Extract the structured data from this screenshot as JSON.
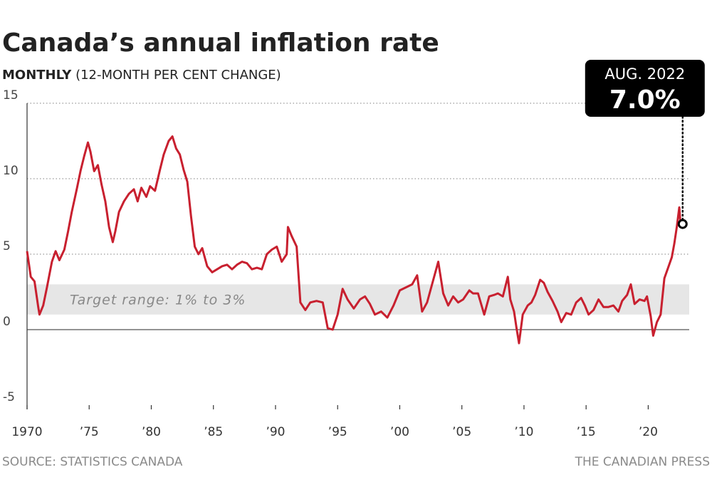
{
  "chart_data": {
    "type": "line",
    "title": "Canada’s annual inflation rate",
    "subtitle_bold": "MONTHLY",
    "subtitle": "(12-MONTH PER CENT CHANGE)",
    "source": "SOURCE: STATISTICS CANADA",
    "credit": "THE CANADIAN PRESS",
    "color": "#c8202f",
    "xlim": [
      1970,
      2023.3
    ],
    "ylim": [
      -5,
      15
    ],
    "xticks": [
      1970,
      {
        "value": 1975,
        "label": "’75"
      },
      {
        "value": 1980,
        "label": "’80"
      },
      {
        "value": 1985,
        "label": "’85"
      },
      {
        "value": 1990,
        "label": "’90"
      },
      {
        "value": 1995,
        "label": "’95"
      },
      {
        "value": 2000,
        "label": "’00"
      },
      {
        "value": 2005,
        "label": "’05"
      },
      {
        "value": 2010,
        "label": "’10"
      },
      {
        "value": 2015,
        "label": "’15"
      },
      {
        "value": 2020,
        "label": "’20"
      }
    ],
    "yticks": [
      15,
      10,
      5,
      0,
      -5
    ],
    "grid": true,
    "target_range": {
      "label": "Target range: 1% to 3%",
      "range": [
        1,
        3
      ]
    },
    "annotation": {
      "date_label": "AUG. 2022",
      "x": 2022.6,
      "value": 7.0,
      "value_label": "7.0%"
    },
    "x": [
      1970.0,
      1970.3,
      1970.6,
      1970.9,
      1971.0,
      1971.3,
      1971.6,
      1972.0,
      1972.3,
      1972.6,
      1973.0,
      1973.3,
      1973.6,
      1974.0,
      1974.3,
      1974.6,
      1974.9,
      1975.1,
      1975.4,
      1975.7,
      1976.0,
      1976.3,
      1976.6,
      1976.9,
      1977.1,
      1977.4,
      1977.8,
      1978.2,
      1978.6,
      1978.9,
      1979.2,
      1979.6,
      1979.9,
      1980.3,
      1980.7,
      1981.0,
      1981.4,
      1981.7,
      1982.0,
      1982.3,
      1982.6,
      1982.9,
      1983.2,
      1983.5,
      1983.8,
      1984.1,
      1984.5,
      1984.9,
      1985.3,
      1985.7,
      1986.1,
      1986.5,
      1986.9,
      1987.3,
      1987.7,
      1988.1,
      1988.5,
      1988.9,
      1989.3,
      1989.7,
      1990.1,
      1990.5,
      1990.9,
      1991.0,
      1991.3,
      1991.7,
      1992.0,
      1992.4,
      1992.8,
      1993.3,
      1993.8,
      1994.2,
      1994.6,
      1995.0,
      1995.4,
      1995.8,
      1996.3,
      1996.8,
      1997.2,
      1997.6,
      1998.0,
      1998.5,
      1999.0,
      1999.5,
      2000.0,
      2000.5,
      2001.0,
      2001.4,
      2001.8,
      2002.2,
      2002.6,
      2003.1,
      2003.5,
      2003.9,
      2004.3,
      2004.7,
      2005.1,
      2005.6,
      2005.9,
      2006.3,
      2006.8,
      2007.2,
      2007.6,
      2007.9,
      2008.3,
      2008.7,
      2008.9,
      2009.2,
      2009.4,
      2009.6,
      2009.9,
      2010.3,
      2010.6,
      2010.9,
      2011.3,
      2011.6,
      2011.9,
      2012.3,
      2012.7,
      2013.0,
      2013.4,
      2013.8,
      2014.2,
      2014.6,
      2014.9,
      2015.2,
      2015.6,
      2016.0,
      2016.4,
      2016.8,
      2017.2,
      2017.6,
      2017.9,
      2018.3,
      2018.6,
      2018.9,
      2019.3,
      2019.7,
      2019.9,
      2020.2,
      2020.4,
      2020.7,
      2021.0,
      2021.3,
      2021.6,
      2021.9,
      2022.1,
      2022.3,
      2022.5,
      2022.6
    ],
    "values": [
      5.2,
      3.5,
      3.2,
      1.5,
      1.0,
      1.6,
      2.8,
      4.5,
      5.2,
      4.6,
      5.3,
      6.5,
      7.8,
      9.3,
      10.5,
      11.5,
      12.4,
      11.8,
      10.5,
      10.9,
      9.6,
      8.5,
      6.8,
      5.8,
      6.5,
      7.8,
      8.5,
      9.0,
      9.3,
      8.5,
      9.4,
      8.8,
      9.5,
      9.2,
      10.6,
      11.6,
      12.5,
      12.8,
      12.0,
      11.6,
      10.6,
      9.8,
      7.5,
      5.5,
      5.0,
      5.4,
      4.2,
      3.8,
      4.0,
      4.2,
      4.3,
      4.0,
      4.3,
      4.5,
      4.4,
      4.0,
      4.1,
      4.0,
      5.0,
      5.3,
      5.5,
      4.5,
      5.0,
      6.8,
      6.2,
      5.5,
      1.8,
      1.3,
      1.8,
      1.9,
      1.8,
      0.1,
      0.0,
      1.0,
      2.7,
      2.0,
      1.4,
      2.0,
      2.2,
      1.7,
      1.0,
      1.2,
      0.8,
      1.6,
      2.6,
      2.8,
      3.0,
      3.6,
      1.2,
      1.8,
      3.0,
      4.5,
      2.4,
      1.6,
      2.2,
      1.8,
      2.0,
      2.6,
      2.4,
      2.4,
      1.0,
      2.2,
      2.3,
      2.4,
      2.2,
      3.5,
      2.0,
      1.2,
      0.1,
      -0.9,
      1.0,
      1.6,
      1.8,
      2.3,
      3.3,
      3.1,
      2.5,
      1.9,
      1.2,
      0.5,
      1.1,
      1.0,
      1.8,
      2.1,
      1.6,
      1.0,
      1.3,
      2.0,
      1.5,
      1.5,
      1.6,
      1.2,
      1.9,
      2.3,
      3.0,
      1.7,
      2.0,
      1.9,
      2.2,
      0.9,
      -0.4,
      0.5,
      1.0,
      3.4,
      4.1,
      4.8,
      5.7,
      6.8,
      8.1,
      7.0
    ]
  }
}
